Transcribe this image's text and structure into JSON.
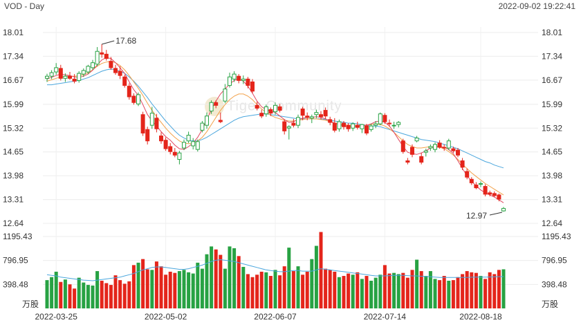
{
  "header": {
    "title": "VOD - Day",
    "timestamp": "2022-09-02 19:22:41"
  },
  "watermark": "Tiger Community",
  "chart_data": {
    "type": "candlestick",
    "price_panel": {
      "ylim": [
        12.64,
        18.01
      ],
      "y_ticks": [
        "18.01",
        "17.34",
        "16.67",
        "15.99",
        "15.32",
        "14.65",
        "13.98",
        "13.31",
        "12.64"
      ],
      "annotations": [
        {
          "label": "17.68",
          "value": 17.68,
          "kind": "high"
        },
        {
          "label": "12.97",
          "value": 12.97,
          "kind": "low"
        }
      ]
    },
    "volume_panel": {
      "ylim": [
        0,
        1195.43
      ],
      "y_ticks": [
        "1195.43",
        "796.95",
        "398.48"
      ],
      "unit": "万股"
    },
    "x_ticks": [
      "2022-03-25",
      "2022-05-02",
      "2022-06-07",
      "2022-07-14",
      "2022-08-18"
    ],
    "colors": {
      "up": "#27a243",
      "down": "#e4251b",
      "ma_short": "#e0455f",
      "ma_mid": "#f2a14a",
      "ma_long": "#4aa6dd",
      "vol_ma": "#4aa6dd"
    },
    "candles": [
      {
        "o": 16.72,
        "h": 16.85,
        "l": 16.62,
        "c": 16.78
      },
      {
        "o": 16.78,
        "h": 16.95,
        "l": 16.7,
        "c": 16.88
      },
      {
        "o": 16.9,
        "h": 17.15,
        "l": 16.82,
        "c": 17.02
      },
      {
        "o": 17.0,
        "h": 17.1,
        "l": 16.66,
        "c": 16.72
      },
      {
        "o": 16.72,
        "h": 16.86,
        "l": 16.62,
        "c": 16.78
      },
      {
        "o": 16.78,
        "h": 16.9,
        "l": 16.68,
        "c": 16.72
      },
      {
        "o": 16.7,
        "h": 16.84,
        "l": 16.58,
        "c": 16.64
      },
      {
        "o": 16.66,
        "h": 16.92,
        "l": 16.6,
        "c": 16.86
      },
      {
        "o": 16.84,
        "h": 17.0,
        "l": 16.76,
        "c": 16.94
      },
      {
        "o": 16.9,
        "h": 17.1,
        "l": 16.84,
        "c": 17.06
      },
      {
        "o": 17.02,
        "h": 17.24,
        "l": 16.96,
        "c": 17.16
      },
      {
        "o": 17.12,
        "h": 17.6,
        "l": 17.06,
        "c": 17.48
      },
      {
        "o": 17.44,
        "h": 17.68,
        "l": 17.3,
        "c": 17.4
      },
      {
        "o": 17.4,
        "h": 17.52,
        "l": 17.22,
        "c": 17.28
      },
      {
        "o": 17.2,
        "h": 17.32,
        "l": 16.96,
        "c": 17.02
      },
      {
        "o": 17.0,
        "h": 17.1,
        "l": 16.82,
        "c": 16.88
      },
      {
        "o": 16.92,
        "h": 17.06,
        "l": 16.7,
        "c": 16.8
      },
      {
        "o": 16.76,
        "h": 16.82,
        "l": 16.46,
        "c": 16.52
      },
      {
        "o": 16.5,
        "h": 16.58,
        "l": 16.12,
        "c": 16.2
      },
      {
        "o": 16.22,
        "h": 16.3,
        "l": 15.98,
        "c": 16.04
      },
      {
        "o": 16.0,
        "h": 16.32,
        "l": 15.94,
        "c": 16.26
      },
      {
        "o": 15.7,
        "h": 15.78,
        "l": 15.1,
        "c": 15.18
      },
      {
        "o": 15.28,
        "h": 15.36,
        "l": 14.86,
        "c": 14.96
      },
      {
        "o": 15.4,
        "h": 15.92,
        "l": 15.3,
        "c": 15.74
      },
      {
        "o": 15.6,
        "h": 15.72,
        "l": 15.2,
        "c": 15.3
      },
      {
        "o": 15.1,
        "h": 15.2,
        "l": 14.88,
        "c": 14.96
      },
      {
        "o": 14.98,
        "h": 15.06,
        "l": 14.68,
        "c": 14.74
      },
      {
        "o": 14.8,
        "h": 14.9,
        "l": 14.58,
        "c": 14.66
      },
      {
        "o": 14.64,
        "h": 14.76,
        "l": 14.5,
        "c": 14.56
      },
      {
        "o": 14.44,
        "h": 14.68,
        "l": 14.3,
        "c": 14.62
      },
      {
        "o": 14.76,
        "h": 15.0,
        "l": 14.7,
        "c": 14.92
      },
      {
        "o": 14.96,
        "h": 15.22,
        "l": 14.9,
        "c": 15.12
      },
      {
        "o": 14.82,
        "h": 15.04,
        "l": 14.72,
        "c": 14.94
      },
      {
        "o": 14.72,
        "h": 15.0,
        "l": 14.66,
        "c": 14.94
      },
      {
        "o": 15.26,
        "h": 15.52,
        "l": 15.2,
        "c": 15.46
      },
      {
        "o": 15.4,
        "h": 15.76,
        "l": 15.3,
        "c": 15.66
      },
      {
        "o": 15.8,
        "h": 16.1,
        "l": 15.72,
        "c": 16.04
      },
      {
        "o": 16.04,
        "h": 16.1,
        "l": 15.88,
        "c": 15.96
      },
      {
        "o": 15.54,
        "h": 15.76,
        "l": 15.46,
        "c": 15.5
      },
      {
        "o": 16.08,
        "h": 16.56,
        "l": 16.02,
        "c": 16.42
      },
      {
        "o": 16.52,
        "h": 16.88,
        "l": 16.46,
        "c": 16.76
      },
      {
        "o": 16.7,
        "h": 16.92,
        "l": 16.62,
        "c": 16.84
      },
      {
        "o": 16.78,
        "h": 16.84,
        "l": 16.58,
        "c": 16.66
      },
      {
        "o": 16.66,
        "h": 16.8,
        "l": 16.56,
        "c": 16.7
      },
      {
        "o": 16.7,
        "h": 16.76,
        "l": 16.44,
        "c": 16.52
      },
      {
        "o": 16.62,
        "h": 16.7,
        "l": 16.3,
        "c": 16.36
      },
      {
        "o": 15.96,
        "h": 16.06,
        "l": 15.82,
        "c": 15.88
      },
      {
        "o": 15.74,
        "h": 15.84,
        "l": 15.6,
        "c": 15.66
      },
      {
        "o": 15.72,
        "h": 15.98,
        "l": 15.64,
        "c": 15.92
      },
      {
        "o": 15.84,
        "h": 15.9,
        "l": 15.66,
        "c": 15.74
      },
      {
        "o": 15.78,
        "h": 16.04,
        "l": 15.7,
        "c": 15.96
      },
      {
        "o": 15.92,
        "h": 16.0,
        "l": 15.76,
        "c": 15.82
      },
      {
        "o": 15.5,
        "h": 15.56,
        "l": 15.14,
        "c": 15.24
      },
      {
        "o": 15.32,
        "h": 15.4,
        "l": 15.0,
        "c": 15.36
      },
      {
        "o": 15.46,
        "h": 15.58,
        "l": 15.34,
        "c": 15.4
      },
      {
        "o": 15.4,
        "h": 15.7,
        "l": 15.32,
        "c": 15.62
      },
      {
        "o": 15.86,
        "h": 15.92,
        "l": 15.54,
        "c": 15.68
      },
      {
        "o": 15.66,
        "h": 15.76,
        "l": 15.54,
        "c": 15.62
      },
      {
        "o": 15.6,
        "h": 15.7,
        "l": 15.46,
        "c": 15.64
      },
      {
        "o": 15.7,
        "h": 15.84,
        "l": 15.6,
        "c": 15.76
      },
      {
        "o": 15.7,
        "h": 15.8,
        "l": 15.56,
        "c": 15.64
      },
      {
        "o": 15.82,
        "h": 15.9,
        "l": 15.58,
        "c": 15.66
      },
      {
        "o": 15.56,
        "h": 15.64,
        "l": 15.4,
        "c": 15.48
      },
      {
        "o": 15.46,
        "h": 15.6,
        "l": 15.2,
        "c": 15.26
      },
      {
        "o": 15.3,
        "h": 15.56,
        "l": 15.22,
        "c": 15.5
      },
      {
        "o": 15.46,
        "h": 15.52,
        "l": 15.28,
        "c": 15.36
      },
      {
        "o": 15.4,
        "h": 15.46,
        "l": 15.22,
        "c": 15.3
      },
      {
        "o": 15.32,
        "h": 15.48,
        "l": 15.24,
        "c": 15.44
      },
      {
        "o": 15.4,
        "h": 15.5,
        "l": 15.28,
        "c": 15.34
      },
      {
        "o": 15.3,
        "h": 15.44,
        "l": 15.18,
        "c": 15.42
      },
      {
        "o": 15.38,
        "h": 15.44,
        "l": 15.12,
        "c": 15.18
      },
      {
        "o": 15.28,
        "h": 15.44,
        "l": 15.22,
        "c": 15.38
      },
      {
        "o": 15.4,
        "h": 15.52,
        "l": 15.32,
        "c": 15.44
      },
      {
        "o": 15.44,
        "h": 15.76,
        "l": 15.4,
        "c": 15.72
      },
      {
        "o": 15.68,
        "h": 15.74,
        "l": 15.44,
        "c": 15.5
      },
      {
        "o": 15.46,
        "h": 15.56,
        "l": 15.36,
        "c": 15.44
      },
      {
        "o": 15.4,
        "h": 15.5,
        "l": 15.3,
        "c": 15.4
      },
      {
        "o": 15.42,
        "h": 15.52,
        "l": 15.34,
        "c": 15.48
      },
      {
        "o": 14.96,
        "h": 15.02,
        "l": 14.6,
        "c": 14.66
      },
      {
        "o": 14.4,
        "h": 14.48,
        "l": 14.3,
        "c": 14.36
      },
      {
        "o": 14.78,
        "h": 14.86,
        "l": 14.5,
        "c": 14.58
      },
      {
        "o": 14.96,
        "h": 15.1,
        "l": 14.92,
        "c": 15.04
      },
      {
        "o": 14.52,
        "h": 14.62,
        "l": 14.3,
        "c": 14.36
      },
      {
        "o": 14.64,
        "h": 14.74,
        "l": 14.52,
        "c": 14.68
      },
      {
        "o": 14.76,
        "h": 14.86,
        "l": 14.68,
        "c": 14.8
      },
      {
        "o": 14.72,
        "h": 14.92,
        "l": 14.64,
        "c": 14.86
      },
      {
        "o": 14.9,
        "h": 14.98,
        "l": 14.74,
        "c": 14.78
      },
      {
        "o": 14.78,
        "h": 14.86,
        "l": 14.68,
        "c": 14.76
      },
      {
        "o": 14.76,
        "h": 15.02,
        "l": 14.7,
        "c": 14.96
      },
      {
        "o": 14.74,
        "h": 14.8,
        "l": 14.62,
        "c": 14.68
      },
      {
        "o": 14.7,
        "h": 14.76,
        "l": 14.5,
        "c": 14.56
      },
      {
        "o": 14.4,
        "h": 14.48,
        "l": 14.14,
        "c": 14.22
      },
      {
        "o": 14.1,
        "h": 14.18,
        "l": 13.88,
        "c": 13.94
      },
      {
        "o": 13.88,
        "h": 13.94,
        "l": 13.72,
        "c": 13.78
      },
      {
        "o": 13.72,
        "h": 13.8,
        "l": 13.6,
        "c": 13.64
      },
      {
        "o": 13.74,
        "h": 13.82,
        "l": 13.66,
        "c": 13.76
      },
      {
        "o": 13.68,
        "h": 13.74,
        "l": 13.4,
        "c": 13.46
      },
      {
        "o": 13.5,
        "h": 13.56,
        "l": 13.4,
        "c": 13.46
      },
      {
        "o": 13.48,
        "h": 13.54,
        "l": 13.38,
        "c": 13.42
      },
      {
        "o": 13.44,
        "h": 13.48,
        "l": 13.26,
        "c": 13.32
      },
      {
        "o": 12.99,
        "h": 13.1,
        "l": 12.97,
        "c": 13.06
      }
    ],
    "volume": [
      470,
      520,
      610,
      440,
      480,
      400,
      330,
      510,
      430,
      390,
      380,
      620,
      460,
      420,
      390,
      550,
      470,
      410,
      450,
      720,
      760,
      820,
      650,
      640,
      780,
      700,
      560,
      610,
      590,
      620,
      640,
      600,
      580,
      760,
      660,
      900,
      1030,
      980,
      890,
      660,
      1030,
      1000,
      870,
      690,
      570,
      520,
      560,
      610,
      600,
      540,
      640,
      550,
      700,
      1010,
      620,
      700,
      560,
      610,
      820,
      1040,
      1270,
      660,
      640,
      610,
      520,
      540,
      580,
      560,
      600,
      490,
      540,
      460,
      510,
      560,
      720,
      580,
      590,
      570,
      590,
      510,
      640,
      810,
      620,
      540,
      620,
      490,
      470,
      540,
      460,
      470,
      520,
      570,
      620,
      600,
      590,
      540,
      490,
      600,
      570,
      640,
      650
    ],
    "ma_short": [
      16.7,
      16.75,
      16.8,
      16.84,
      16.82,
      16.8,
      16.76,
      16.75,
      16.78,
      16.84,
      16.95,
      17.1,
      17.24,
      17.3,
      17.28,
      17.16,
      17.02,
      16.86,
      16.62,
      16.4,
      16.24,
      15.98,
      15.7,
      15.52,
      15.38,
      15.22,
      15.08,
      14.98,
      14.84,
      14.74,
      14.72,
      14.8,
      14.9,
      15.06,
      15.28,
      15.56,
      15.84,
      16.08,
      16.28,
      16.42,
      16.56,
      16.66,
      16.7,
      16.64,
      16.5,
      16.3,
      16.08,
      15.92,
      15.84,
      15.8,
      15.76,
      15.66,
      15.56,
      15.48,
      15.5,
      15.56,
      15.6,
      15.62,
      15.62,
      15.64,
      15.62,
      15.58,
      15.52,
      15.46,
      15.42,
      15.38,
      15.36,
      15.36,
      15.38,
      15.4,
      15.4,
      15.44,
      15.5,
      15.52,
      15.48,
      15.38,
      15.2,
      15.0,
      14.8,
      14.64,
      14.6,
      14.58,
      14.62,
      14.68,
      14.76,
      14.8,
      14.8,
      14.78,
      14.72,
      14.6,
      14.4,
      14.18,
      13.98,
      13.82,
      13.7,
      13.58,
      13.5,
      13.44,
      13.38,
      13.3,
      13.22
    ],
    "ma_mid": [
      16.64,
      16.68,
      16.72,
      16.76,
      16.78,
      16.78,
      16.78,
      16.8,
      16.82,
      16.88,
      16.96,
      17.06,
      17.14,
      17.18,
      17.2,
      17.16,
      17.08,
      16.96,
      16.8,
      16.62,
      16.44,
      16.24,
      16.02,
      15.82,
      15.64,
      15.48,
      15.32,
      15.18,
      15.06,
      14.96,
      14.9,
      14.88,
      14.9,
      14.96,
      15.06,
      15.22,
      15.42,
      15.62,
      15.82,
      15.98,
      16.12,
      16.22,
      16.28,
      16.28,
      16.22,
      16.12,
      15.98,
      15.86,
      15.76,
      15.68,
      15.62,
      15.58,
      15.54,
      15.52,
      15.52,
      15.54,
      15.56,
      15.58,
      15.58,
      15.58,
      15.56,
      15.54,
      15.5,
      15.46,
      15.44,
      15.42,
      15.4,
      15.4,
      15.4,
      15.4,
      15.4,
      15.42,
      15.44,
      15.42,
      15.38,
      15.3,
      15.2,
      15.08,
      14.96,
      14.86,
      14.8,
      14.76,
      14.76,
      14.78,
      14.8,
      14.8,
      14.78,
      14.74,
      14.66,
      14.56,
      14.44,
      14.3,
      14.18,
      14.06,
      13.96,
      13.86,
      13.76,
      13.68,
      13.6,
      13.52,
      13.44
    ],
    "ma_long": [
      16.54,
      16.54,
      16.56,
      16.58,
      16.6,
      16.62,
      16.64,
      16.66,
      16.7,
      16.74,
      16.8,
      16.86,
      16.92,
      16.96,
      16.98,
      16.96,
      16.92,
      16.86,
      16.76,
      16.64,
      16.5,
      16.34,
      16.18,
      16.0,
      15.84,
      15.68,
      15.52,
      15.38,
      15.24,
      15.12,
      15.04,
      14.98,
      14.96,
      14.96,
      15.0,
      15.06,
      15.14,
      15.22,
      15.3,
      15.38,
      15.46,
      15.54,
      15.6,
      15.64,
      15.66,
      15.68,
      15.7,
      15.72,
      15.72,
      15.7,
      15.68,
      15.66,
      15.64,
      15.62,
      15.6,
      15.58,
      15.58,
      15.58,
      15.58,
      15.58,
      15.58,
      15.56,
      15.54,
      15.52,
      15.5,
      15.48,
      15.46,
      15.46,
      15.44,
      15.42,
      15.4,
      15.38,
      15.38,
      15.36,
      15.32,
      15.28,
      15.24,
      15.2,
      15.16,
      15.12,
      15.08,
      15.04,
      15.0,
      14.98,
      14.96,
      14.94,
      14.9,
      14.86,
      14.82,
      14.78,
      14.74,
      14.68,
      14.62,
      14.56,
      14.5,
      14.44,
      14.38,
      14.34,
      14.28,
      14.24,
      14.2
    ],
    "vol_ma": [
      560,
      550,
      540,
      520,
      510,
      500,
      490,
      480,
      470,
      465,
      460,
      470,
      480,
      490,
      500,
      510,
      520,
      540,
      560,
      580,
      610,
      640,
      660,
      680,
      690,
      690,
      680,
      670,
      660,
      650,
      650,
      660,
      680,
      700,
      720,
      750,
      780,
      800,
      810,
      800,
      790,
      780,
      760,
      740,
      720,
      700,
      680,
      660,
      640,
      630,
      620,
      610,
      610,
      620,
      630,
      630,
      620,
      620,
      620,
      640,
      660,
      650,
      640,
      630,
      620,
      610,
      600,
      590,
      580,
      570,
      560,
      550,
      540,
      540,
      540,
      545,
      550,
      550,
      550,
      545,
      540,
      540,
      535,
      530,
      525,
      520,
      515,
      515,
      515,
      515,
      515,
      515,
      515,
      518,
      520,
      520,
      520,
      522,
      525,
      528,
      530
    ]
  }
}
